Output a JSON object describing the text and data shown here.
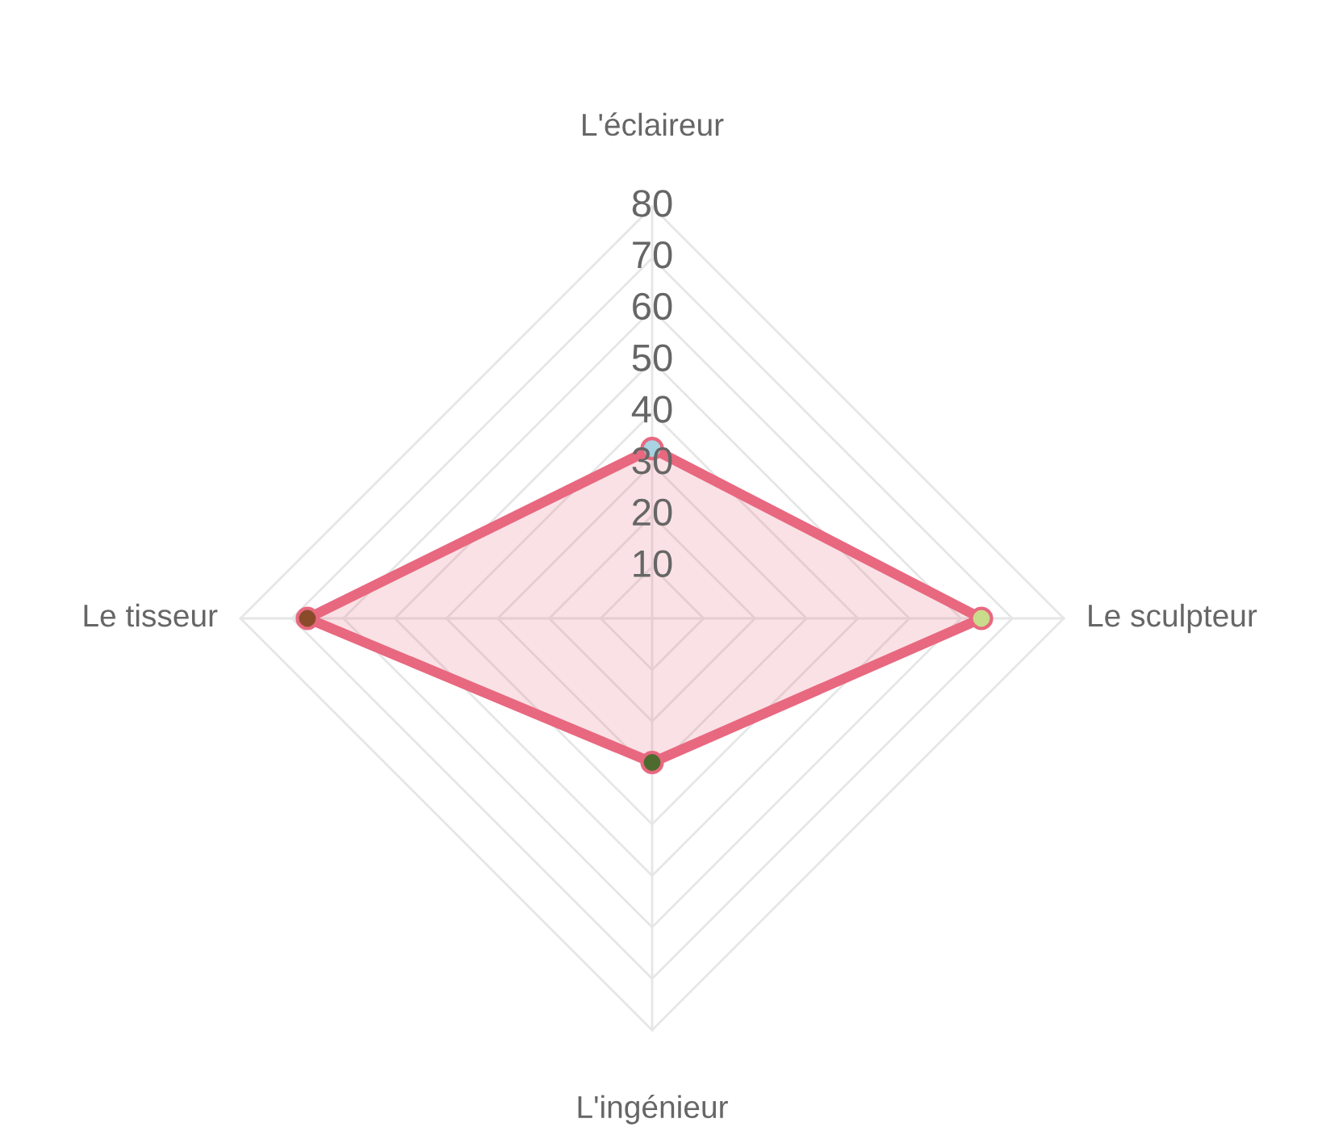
{
  "chart_data": {
    "type": "radar",
    "categories": [
      "L'éclaireur",
      "Le sculpteur",
      "L'ingénieur",
      "Le tisseur"
    ],
    "series": [
      {
        "color": "#e8687f",
        "values": [
          33,
          64,
          28,
          67
        ],
        "colors": [
          "#a8d3e3",
          "#c9dc8c",
          "#4d6b2e",
          "#8a4b2b"
        ]
      }
    ],
    "ylim": [
      0,
      80
    ],
    "yticks": [
      10,
      20,
      30,
      40,
      50,
      60,
      70,
      80
    ],
    "grid": true,
    "marker": "circle",
    "line_style": "solid"
  }
}
